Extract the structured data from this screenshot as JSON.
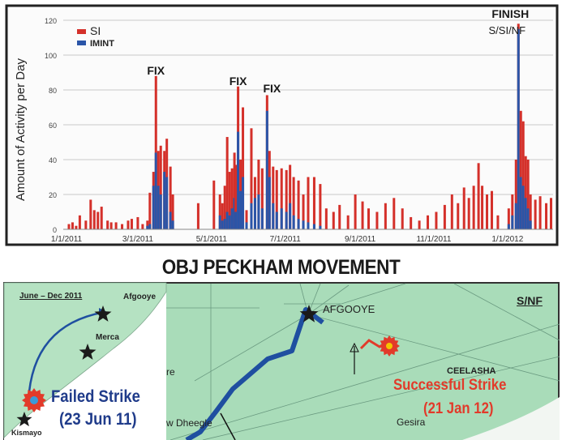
{
  "chart_data": {
    "type": "bar",
    "ylabel": "Amount of Activity per Day",
    "ylim": [
      0,
      120
    ],
    "yticks": [
      "0",
      "20",
      "40",
      "60",
      "80",
      "100",
      "120"
    ],
    "xticks": [
      "1/1/2011",
      "3/1/2011",
      "5/1/2011",
      "7/1/2011",
      "9/1/2011",
      "11/1/2011",
      "1/1/2012"
    ],
    "xlim": [
      "2011-01-01",
      "2012-02-08"
    ],
    "grid": true,
    "legend_position": "top-left",
    "series": [
      {
        "name": "SI",
        "color": "#d4302a"
      },
      {
        "name": "IMINT",
        "color": "#2a55a8"
      }
    ],
    "points_date_si_imint": [
      [
        "2011-01-03",
        3,
        0
      ],
      [
        "2011-01-06",
        4,
        0
      ],
      [
        "2011-01-09",
        2,
        0
      ],
      [
        "2011-01-12",
        8,
        0
      ],
      [
        "2011-01-17",
        5,
        0
      ],
      [
        "2011-01-21",
        17,
        0
      ],
      [
        "2011-01-24",
        11,
        0
      ],
      [
        "2011-01-27",
        10,
        0
      ],
      [
        "2011-01-30",
        13,
        0
      ],
      [
        "2011-02-04",
        5,
        0
      ],
      [
        "2011-02-07",
        4,
        0
      ],
      [
        "2011-02-11",
        4,
        0
      ],
      [
        "2011-02-16",
        3,
        0
      ],
      [
        "2011-02-21",
        5,
        0
      ],
      [
        "2011-02-24",
        6,
        0
      ],
      [
        "2011-03-01",
        7,
        0
      ],
      [
        "2011-03-05",
        3,
        0
      ],
      [
        "2011-03-09",
        5,
        2
      ],
      [
        "2011-03-11",
        21,
        3
      ],
      [
        "2011-03-14",
        33,
        25
      ],
      [
        "2011-03-16",
        88,
        44
      ],
      [
        "2011-03-18",
        45,
        25
      ],
      [
        "2011-03-20",
        48,
        20
      ],
      [
        "2011-03-23",
        45,
        33
      ],
      [
        "2011-03-25",
        52,
        30
      ],
      [
        "2011-03-28",
        36,
        10
      ],
      [
        "2011-03-30",
        20,
        5
      ],
      [
        "2011-04-20",
        15,
        0
      ],
      [
        "2011-05-03",
        28,
        0
      ],
      [
        "2011-05-08",
        20,
        8
      ],
      [
        "2011-05-10",
        15,
        5
      ],
      [
        "2011-05-12",
        25,
        6
      ],
      [
        "2011-05-14",
        53,
        10
      ],
      [
        "2011-05-16",
        33,
        8
      ],
      [
        "2011-05-18",
        35,
        12
      ],
      [
        "2011-05-20",
        44,
        18
      ],
      [
        "2011-05-21",
        37,
        10
      ],
      [
        "2011-05-23",
        82,
        56
      ],
      [
        "2011-05-25",
        40,
        22
      ],
      [
        "2011-05-27",
        70,
        30
      ],
      [
        "2011-05-30",
        11,
        4
      ],
      [
        "2011-06-03",
        58,
        15
      ],
      [
        "2011-06-06",
        30,
        18
      ],
      [
        "2011-06-09",
        40,
        20
      ],
      [
        "2011-06-12",
        35,
        12
      ],
      [
        "2011-06-16",
        77,
        68
      ],
      [
        "2011-06-18",
        45,
        30
      ],
      [
        "2011-06-21",
        36,
        15
      ],
      [
        "2011-06-24",
        34,
        10
      ],
      [
        "2011-06-28",
        35,
        12
      ],
      [
        "2011-07-02",
        34,
        10
      ],
      [
        "2011-07-05",
        37,
        15
      ],
      [
        "2011-07-08",
        30,
        8
      ],
      [
        "2011-07-12",
        28,
        6
      ],
      [
        "2011-07-16",
        20,
        5
      ],
      [
        "2011-07-20",
        30,
        4
      ],
      [
        "2011-07-25",
        30,
        3
      ],
      [
        "2011-07-30",
        26,
        2
      ],
      [
        "2011-08-04",
        12,
        0
      ],
      [
        "2011-08-10",
        10,
        0
      ],
      [
        "2011-08-15",
        14,
        0
      ],
      [
        "2011-08-22",
        8,
        0
      ],
      [
        "2011-08-28",
        20,
        0
      ],
      [
        "2011-09-03",
        16,
        0
      ],
      [
        "2011-09-08",
        12,
        0
      ],
      [
        "2011-09-15",
        10,
        0
      ],
      [
        "2011-09-22",
        15,
        0
      ],
      [
        "2011-09-29",
        18,
        0
      ],
      [
        "2011-10-06",
        12,
        0
      ],
      [
        "2011-10-13",
        7,
        0
      ],
      [
        "2011-10-20",
        5,
        0
      ],
      [
        "2011-10-27",
        8,
        0
      ],
      [
        "2011-11-03",
        10,
        0
      ],
      [
        "2011-11-10",
        14,
        0
      ],
      [
        "2011-11-16",
        20,
        0
      ],
      [
        "2011-11-21",
        15,
        0
      ],
      [
        "2011-11-26",
        24,
        0
      ],
      [
        "2011-11-30",
        18,
        0
      ],
      [
        "2011-12-04",
        25,
        0
      ],
      [
        "2011-12-08",
        38,
        0
      ],
      [
        "2011-12-11",
        25,
        0
      ],
      [
        "2011-12-15",
        20,
        0
      ],
      [
        "2011-12-19",
        22,
        0
      ],
      [
        "2011-12-24",
        8,
        0
      ],
      [
        "2012-01-02",
        12,
        3
      ],
      [
        "2012-01-05",
        20,
        8
      ],
      [
        "2012-01-08",
        40,
        15
      ],
      [
        "2012-01-10",
        118,
        115
      ],
      [
        "2012-01-12",
        68,
        30
      ],
      [
        "2012-01-14",
        62,
        25
      ],
      [
        "2012-01-16",
        42,
        18
      ],
      [
        "2012-01-18",
        40,
        12
      ],
      [
        "2012-01-20",
        20,
        5
      ],
      [
        "2012-01-24",
        17,
        0
      ],
      [
        "2012-01-28",
        19,
        0
      ],
      [
        "2012-02-02",
        15,
        0
      ],
      [
        "2012-02-06",
        18,
        0
      ]
    ],
    "annotations": [
      {
        "text": "FIX",
        "date": "2011-03-16"
      },
      {
        "text": "FIX",
        "date": "2011-05-23"
      },
      {
        "text": "FIX",
        "date": "2011-06-16"
      },
      {
        "text": "FINISH",
        "date": "2012-01-10"
      },
      {
        "text": "S/SI/NF",
        "date": "2012-01-10"
      }
    ]
  },
  "title": "OBJ PECKHAM MOVEMENT",
  "map": {
    "inset": {
      "period": "June – Dec 2011",
      "afgooye": "Afgooye",
      "merca": "Merca",
      "kismayo": "Kismayo",
      "failed_strike": "Failed Strike",
      "failed_date": "(23 Jun 11)"
    },
    "afgooye": "AFGOOYE",
    "classification": "S/NF",
    "ceelasha": "CEELASHA",
    "successful_strike": "Successful Strike",
    "success_date": "(21 Jan 12)",
    "gesira": "Gesira",
    "dheegle": "w Dheegle",
    "re": "re",
    "colors": {
      "land": "#a9dcb9",
      "route": "#1f4fa0",
      "strike": "#e23a2a",
      "failed_text": "#1f3b8a"
    }
  }
}
